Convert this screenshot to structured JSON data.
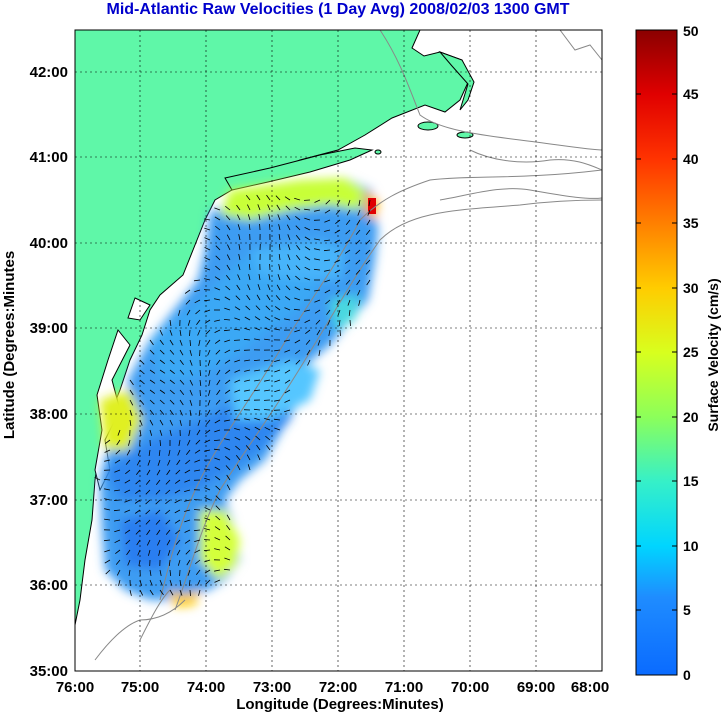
{
  "header": {
    "title": "Mid-Atlantic Raw Velocities (1 Day Avg) 2008/02/03 1300 GMT"
  },
  "map": {
    "x_axis_label": "Longitude (Degrees:Minutes)",
    "y_axis_label": "Latitude (Degrees:Minutes",
    "x_ticks": [
      "76:00",
      "75:00",
      "74:00",
      "73:00",
      "72:00",
      "71:00",
      "70:00",
      "69:00",
      "68:00"
    ],
    "y_ticks": [
      "35:00",
      "36:00",
      "37:00",
      "38:00",
      "39:00",
      "40:00",
      "41:00",
      "42:00"
    ],
    "land_color": "#5ff7a8",
    "coastline_color": "#000000",
    "bathymetry_color": "#888888",
    "vector_color": "#000000",
    "grid_style": "dotted"
  },
  "colorbar": {
    "label": "Surface Velocity (cm/s)",
    "ticks": [
      "0",
      "5",
      "10",
      "15",
      "20",
      "25",
      "30",
      "35",
      "40",
      "45",
      "50"
    ],
    "colormap": "jet",
    "min_color": "#0a6bff",
    "max_color": "#8a0000"
  }
}
